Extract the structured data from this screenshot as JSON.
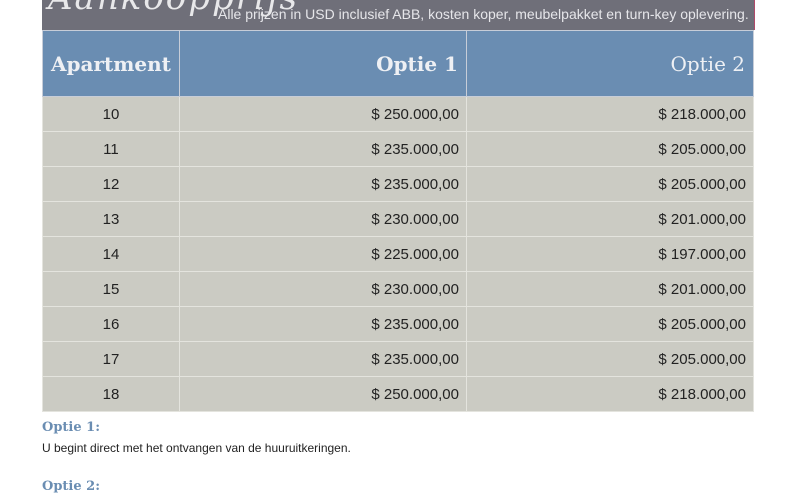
{
  "header": {
    "script_title": "Aankoopprijs",
    "subtitle": "Alle prijzen in USD inclusief ABB, kosten koper, meubelpakket en turn-key oplevering."
  },
  "table": {
    "columns": [
      "Apartment",
      "Optie 1",
      "Optie 2"
    ],
    "rows": [
      [
        "10",
        "$ 250.000,00",
        "$ 218.000,00"
      ],
      [
        "11",
        "$ 235.000,00",
        "$ 205.000,00"
      ],
      [
        "12",
        "$ 235.000,00",
        "$ 205.000,00"
      ],
      [
        "13",
        "$ 230.000,00",
        "$ 201.000,00"
      ],
      [
        "14",
        "$ 225.000,00",
        "$ 197.000,00"
      ],
      [
        "15",
        "$ 230.000,00",
        "$ 201.000,00"
      ],
      [
        "16",
        "$ 235.000,00",
        "$ 205.000,00"
      ],
      [
        "17",
        "$ 235.000,00",
        "$ 205.000,00"
      ],
      [
        "18",
        "$ 250.000,00",
        "$ 218.000,00"
      ]
    ]
  },
  "notes": [
    {
      "heading": "Optie 1:",
      "text": "U begint direct met het ontvangen van de huuruitkeringen."
    },
    {
      "heading": "Optie 2:"
    }
  ]
}
